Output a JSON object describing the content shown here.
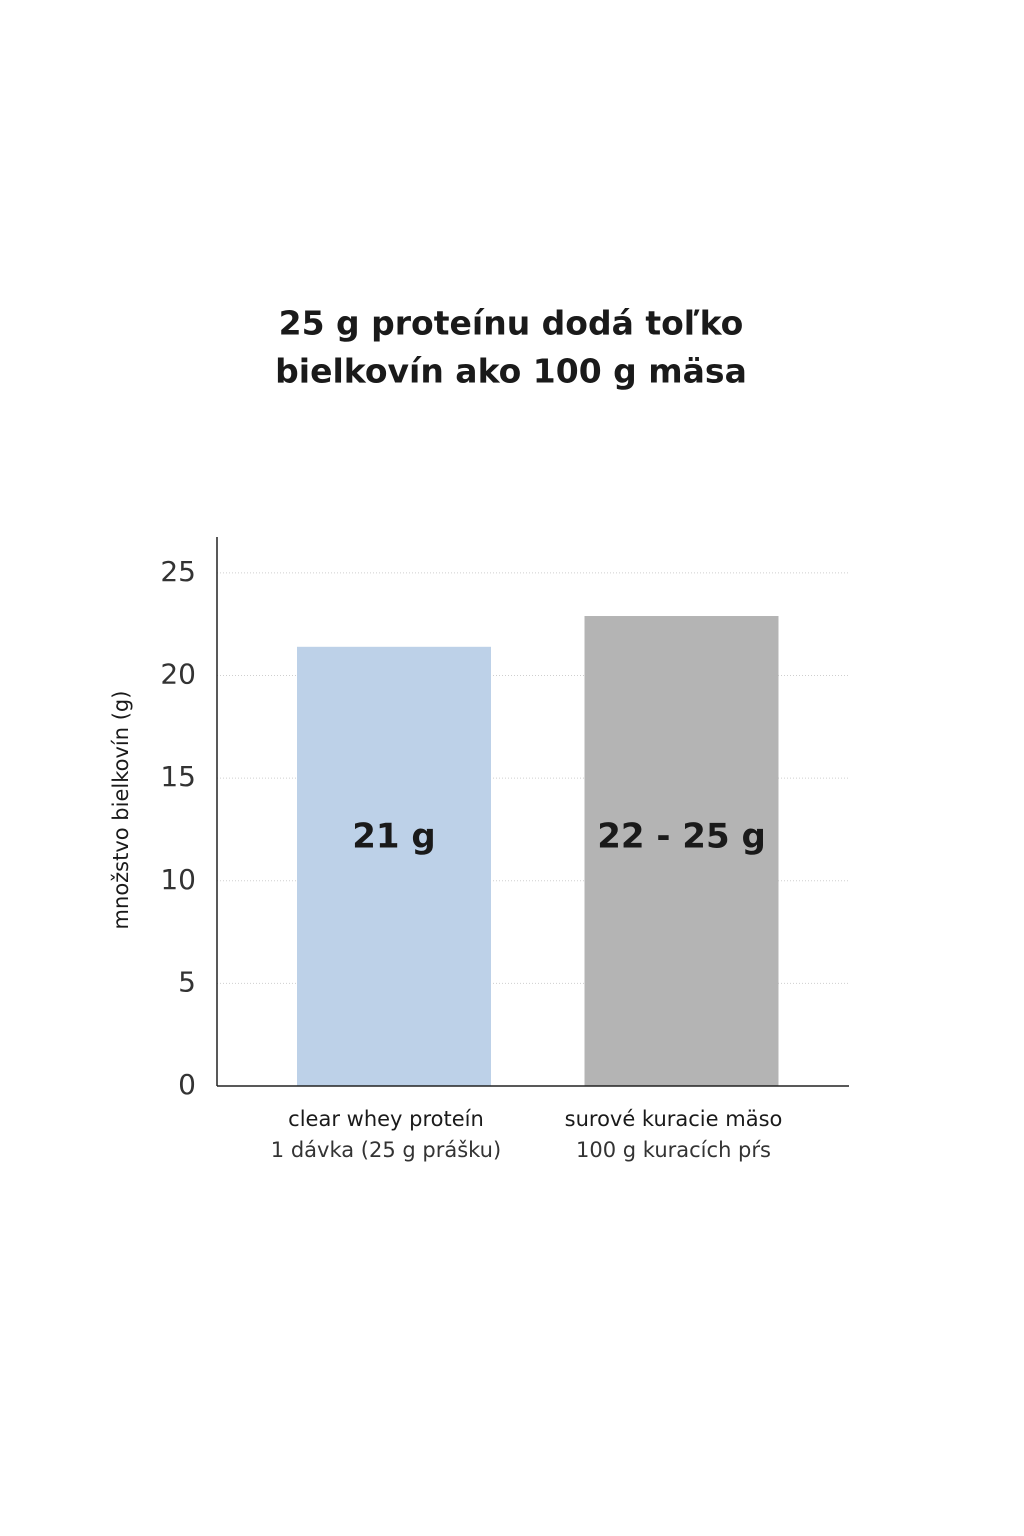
{
  "chart_data": {
    "type": "bar",
    "title": [
      "25 g proteínu dodá toľko",
      "bielkovín ako 100 g mäsa"
    ],
    "y_label": "množstvo bielkovín (g)",
    "categories": [
      "clear whey proteín",
      "surové kuracie mäso"
    ],
    "category_notes": [
      "1 dávka (25 g prášku)",
      "100 g kuracích pŕs"
    ],
    "values": [
      21.4,
      22.9
    ],
    "value_labels": [
      "21 g",
      "22 - 25 g"
    ],
    "colors": [
      "#bdd1e8",
      "#b4b4b4"
    ],
    "ylim": [
      0,
      26.75
    ],
    "yticks": [
      0,
      5,
      10,
      15,
      20,
      25
    ],
    "grid": true
  }
}
